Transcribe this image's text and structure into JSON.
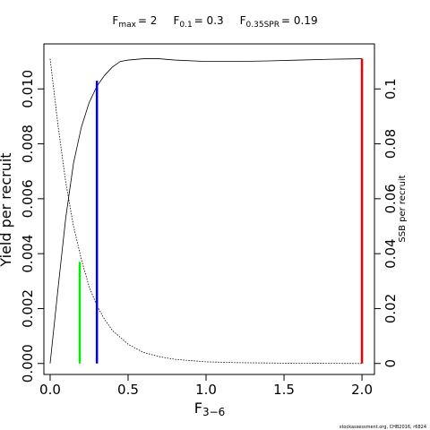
{
  "title": {
    "fmax_label": "F",
    "fmax_sub": "max",
    "fmax_value": "= 2",
    "f01_label": "F",
    "f01_sub": "0.1",
    "f01_value": "= 0.3",
    "fspr_label": "F",
    "fspr_sub": "0.35SPR",
    "fspr_value": "= 0.19"
  },
  "footer": "stockassessment.org, CHB2016, r6824",
  "chart_data": {
    "type": "line",
    "xlabel_main": "F",
    "xlabel_sub": "3−6",
    "ylabel": "Yield per recruit",
    "y2label": "SSB per recruit",
    "xlim": [
      -0.04,
      2.08
    ],
    "ylim": [
      -0.0004,
      0.01164
    ],
    "y2lim": [
      -0.004,
      0.1164
    ],
    "x_ticks": [
      0.0,
      0.5,
      1.0,
      1.5,
      2.0
    ],
    "x_tick_labels": [
      "0.0",
      "0.5",
      "1.0",
      "1.5",
      "2.0"
    ],
    "y_ticks": [
      0.0,
      0.002,
      0.004,
      0.006,
      0.008,
      0.01
    ],
    "y_tick_labels": [
      "0.000",
      "0.002",
      "0.004",
      "0.006",
      "0.008",
      "0.010"
    ],
    "y2_ticks": [
      0.0,
      0.02,
      0.04,
      0.06,
      0.08,
      0.1
    ],
    "y2_tick_labels": [
      "0",
      "0.02",
      "0.04",
      "0.06",
      "0.08",
      "0.1"
    ],
    "grid": false,
    "series": [
      {
        "line": "solid",
        "color": "#000000",
        "axis": "left",
        "x": [
          0,
          0.05,
          0.1,
          0.15,
          0.2,
          0.25,
          0.3,
          0.35,
          0.4,
          0.45,
          0.5,
          0.6,
          0.7,
          0.8,
          1.0,
          1.2,
          1.4,
          1.6,
          1.8,
          2.0
        ],
        "y": [
          0.0,
          0.0027,
          0.0053,
          0.0073,
          0.0086,
          0.0095,
          0.0101,
          0.0105,
          0.0108,
          0.011,
          0.01105,
          0.0111,
          0.0111,
          0.01105,
          0.011,
          0.011,
          0.01102,
          0.01105,
          0.01108,
          0.0111
        ]
      },
      {
        "line": "dotted",
        "color": "#000000",
        "axis": "right",
        "x": [
          0,
          0.05,
          0.1,
          0.15,
          0.2,
          0.25,
          0.3,
          0.35,
          0.4,
          0.5,
          0.6,
          0.7,
          0.8,
          1.0,
          1.2,
          1.5,
          2.0
        ],
        "y": [
          0.111,
          0.087,
          0.066,
          0.05,
          0.038,
          0.028,
          0.021,
          0.016,
          0.012,
          0.007,
          0.004,
          0.0025,
          0.0015,
          0.0006,
          0.0003,
          0.0001,
          0.0
        ]
      }
    ],
    "reference_lines": [
      {
        "x": 0.19,
        "y": 0.0037,
        "color": "#00ee00"
      },
      {
        "x": 0.3,
        "y": 0.0103,
        "color": "#0000ee"
      },
      {
        "x": 2.0,
        "y": 0.0111,
        "color": "#ee0000"
      }
    ]
  }
}
